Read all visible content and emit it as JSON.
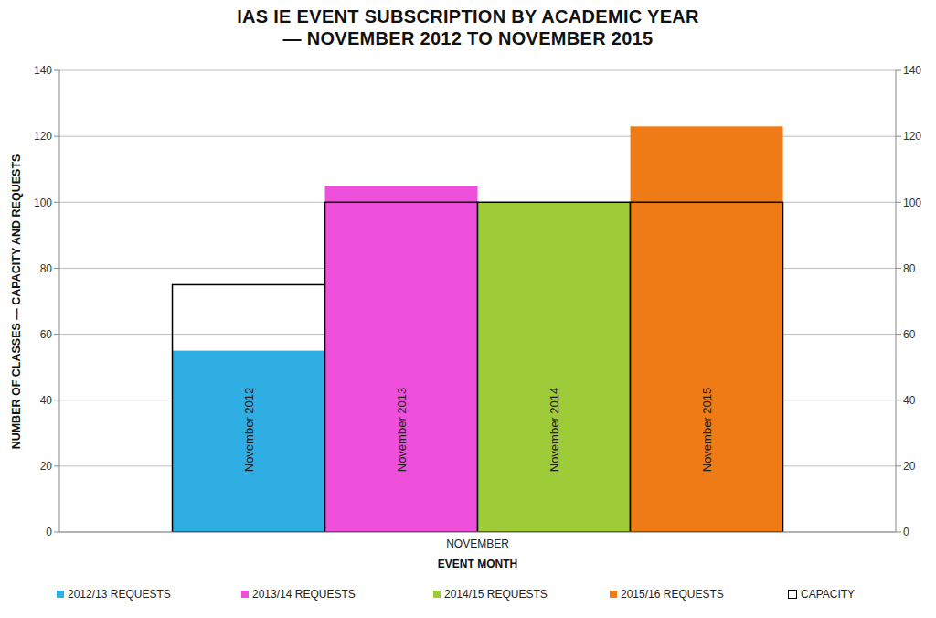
{
  "chart_data": {
    "type": "bar",
    "title": "IAS IE EVENT SUBSCRIPTION BY ACADEMIC YEAR\n— NOVEMBER 2012 TO NOVEMBER 2015",
    "x_label": "EVENT MONTH",
    "y_label": "NUMBER OF CLASSES — CAPACITY AND REQUESTS",
    "categories": [
      "NOVEMBER"
    ],
    "series": [
      {
        "name": "2012/13 REQUESTS",
        "color": "#2eaee3",
        "values": [
          55
        ],
        "capacity": [
          75
        ],
        "label": "November 2012"
      },
      {
        "name": "2013/14 REQUESTS",
        "color": "#ee50dc",
        "values": [
          105
        ],
        "capacity": [
          100
        ],
        "label": "November 2013"
      },
      {
        "name": "2014/15 REQUESTS",
        "color": "#9dcc38",
        "values": [
          100
        ],
        "capacity": [
          100
        ],
        "label": "November 2014"
      },
      {
        "name": "2015/16 REQUESTS",
        "color": "#ee7b16",
        "values": [
          123
        ],
        "capacity": [
          100
        ],
        "label": "November 2015"
      }
    ],
    "capacity_name": "CAPACITY",
    "ylim": [
      0,
      140
    ],
    "yticks": [
      0,
      20,
      40,
      60,
      80,
      100,
      120,
      140
    ],
    "y2lim": [
      0,
      140
    ],
    "y2ticks": [
      0,
      20,
      40,
      60,
      80,
      100,
      120,
      140
    ],
    "grid": true,
    "legend": "bottom"
  }
}
